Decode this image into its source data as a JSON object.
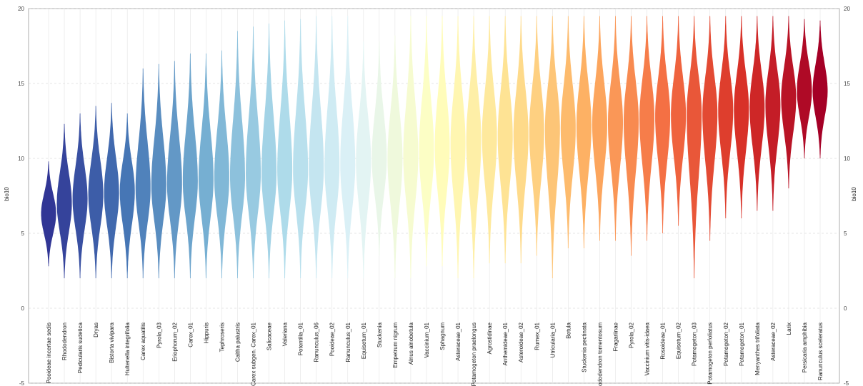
{
  "chart_data": {
    "type": "violin",
    "ylabel": "bio10",
    "categories": [
      "Pooideae incertae sedis",
      "Rhododendron",
      "Pedicularis sudetica",
      "Dryas",
      "Bistorta vivipara",
      "Hultenella integrifolia",
      "Carex aquatilis",
      "Pyrola_03",
      "Eriophorum_02",
      "Carex_01",
      "Hippuris",
      "Tephroseris",
      "Caltha palustris",
      "Carex subgen. Carex_01",
      "Salicaceae",
      "Valeriana",
      "Potentilla_01",
      "Ranunculus_06",
      "Pooideae_02",
      "Ranunculus_01",
      "Equisetum_01",
      "Stuckenia",
      "Empetrum nigrum",
      "Alnus alnobetula",
      "Vaccinium_01",
      "Sphagnum",
      "Asteraceae_01",
      "Potamogeton praelongus",
      "Agrostidinae",
      "Anthemideae_01",
      "Asteroideae_02",
      "Rumex_01",
      "Utricularia_01",
      "Betula",
      "Stuckenia pectinata",
      "Rhododendron tomentosum",
      "Fragariinae",
      "Pyrola_02",
      "Vaccinium vitis-idaea",
      "Rosoideae_01",
      "Equisetum_02",
      "Potamogeton_03",
      "Potamogeton perfoliatus",
      "Potamogeton_02",
      "Potamogeton_01",
      "Menyanthes trifoliata",
      "Asteraceae_02",
      "Larix",
      "Persicaria amphibia",
      "Ranunculus sceleratus"
    ],
    "min": [
      2.8,
      2,
      2,
      2,
      2,
      2,
      2,
      2,
      2,
      2,
      2,
      2,
      2,
      2,
      2,
      2,
      2,
      2,
      2,
      2,
      2,
      3.5,
      2,
      2,
      2.8,
      2.8,
      2,
      2,
      3,
      3,
      3,
      3.5,
      2,
      4,
      4,
      4.5,
      4.5,
      3.5,
      4.5,
      5,
      5.5,
      2,
      4.5,
      6,
      6,
      6.5,
      6.5,
      8,
      10,
      10
    ],
    "peak": [
      6.3,
      7,
      7.3,
      7.6,
      7.7,
      7.8,
      8,
      8.2,
      8.3,
      8.5,
      8.6,
      8.7,
      8.8,
      9,
      9,
      9.2,
      9.3,
      9.4,
      9.5,
      9.6,
      9.8,
      10,
      10,
      10.2,
      10.5,
      10.8,
      11,
      11.2,
      11.5,
      11.5,
      11.6,
      11.8,
      12,
      12,
      12.2,
      12.3,
      12.4,
      12.5,
      12.7,
      12.8,
      12.9,
      13,
      13,
      13.2,
      13.3,
      13.4,
      13.6,
      14,
      14.5,
      14.5
    ],
    "max": [
      9.8,
      12.3,
      13,
      13.5,
      13.7,
      13,
      16,
      16.3,
      16.5,
      17,
      17,
      17.2,
      18.5,
      18.8,
      19,
      19.2,
      19.3,
      19.5,
      19.5,
      19.5,
      17.8,
      17.8,
      18.2,
      19.5,
      19.5,
      19.5,
      19.5,
      19.5,
      19.5,
      19.5,
      19.5,
      19.5,
      19.5,
      19.5,
      19.5,
      19.5,
      19.5,
      19.5,
      19.5,
      19.5,
      19.5,
      19.5,
      19.5,
      19.5,
      19.5,
      19.5,
      19.5,
      19.5,
      19.3,
      19.2
    ],
    "palette": [
      "#313695",
      "#4575b4",
      "#74add1",
      "#abd9e9",
      "#e0f3f8",
      "#ffffbf",
      "#fee090",
      "#fdae61",
      "#f46d43",
      "#d73027",
      "#a50026"
    ],
    "ylim": [
      -5,
      20
    ],
    "yticks": [
      -5,
      0,
      5,
      10,
      15,
      20
    ],
    "grid": true
  }
}
